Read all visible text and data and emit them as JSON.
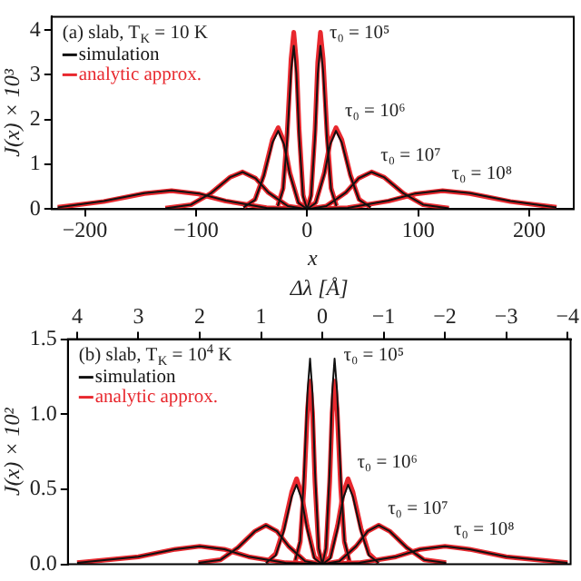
{
  "chart_data": [
    {
      "type": "line",
      "xlabel": "x",
      "ylabel": "J(x) × 10³",
      "xlim": [
        -230,
        240
      ],
      "xticks": [
        -200,
        -100,
        0,
        100,
        200
      ],
      "ylim": [
        0,
        4.3
      ],
      "yticks": [
        0,
        1,
        2,
        3,
        4
      ],
      "legend": "top left",
      "grid": false,
      "marker": "none",
      "line_style": "solid",
      "annotations": [
        "(a) slab, T$_{K}$ = 10 K",
        {
          "text": "τ₀ = 10⁵",
          "x": 12,
          "y": 3.95
        },
        {
          "text": "τ₀ = 10⁶",
          "x": 26,
          "y": 1.82
        },
        {
          "text": "τ₀ = 10⁷",
          "x": 58,
          "y": 0.83
        },
        {
          "text": "τ₀ = 10⁸",
          "x": 122,
          "y": 0.42
        }
      ],
      "series": [
        {
          "name": "simulation",
          "color": "#111111",
          "x": [
            -26.4,
            -21.6,
            -18,
            -14.4,
            -12,
            -9.6,
            -7.2,
            -3.6,
            0,
            3.6,
            7.2,
            9.6,
            12,
            14.4,
            18,
            21.6,
            26.4
          ],
          "values": [
            0.07,
            0.44,
            1.53,
            3.1,
            3.65,
            3.03,
            1.64,
            0.29,
            0,
            0.29,
            1.64,
            3.03,
            3.65,
            3.1,
            1.53,
            0.44,
            0.07
          ]
        },
        {
          "name": "analytic approx.",
          "color": "#e8282e",
          "x": [
            -26.4,
            -21.6,
            -18,
            -14.4,
            -12,
            -9.6,
            -7.2,
            -3.6,
            0,
            3.6,
            7.2,
            9.6,
            12,
            14.4,
            18,
            21.6,
            26.4
          ],
          "values": [
            0.08,
            0.47,
            1.66,
            3.36,
            3.95,
            3.28,
            1.78,
            0.32,
            0,
            0.32,
            1.78,
            3.28,
            3.95,
            3.36,
            1.66,
            0.47,
            0.08
          ]
        },
        {
          "color": "#111111",
          "x": [
            -57.2,
            -46.8,
            -39,
            -31.2,
            -26,
            -20.8,
            -15.6,
            -7.8,
            0,
            7.8,
            15.6,
            20.8,
            26,
            31.2,
            39,
            46.8,
            57.2
          ],
          "values": [
            0.04,
            0.21,
            0.74,
            1.49,
            1.75,
            1.45,
            0.79,
            0.14,
            0,
            0.14,
            0.79,
            1.45,
            1.75,
            1.49,
            0.74,
            0.21,
            0.04
          ]
        },
        {
          "color": "#e8282e",
          "x": [
            -57.2,
            -46.8,
            -39,
            -31.2,
            -26,
            -20.8,
            -15.6,
            -7.8,
            0,
            7.8,
            15.6,
            20.8,
            26,
            31.2,
            39,
            46.8,
            57.2
          ],
          "values": [
            0.04,
            0.22,
            0.76,
            1.55,
            1.82,
            1.51,
            0.82,
            0.15,
            0,
            0.15,
            0.82,
            1.51,
            1.82,
            1.55,
            0.76,
            0.22,
            0.04
          ]
        },
        {
          "color": "#111111",
          "x": [
            -127.6,
            -104.4,
            -87,
            -69.6,
            -58,
            -46.4,
            -34.8,
            -17.4,
            0,
            17.4,
            34.8,
            46.4,
            58,
            69.6,
            87,
            104.4,
            127.6
          ],
          "values": [
            0.02,
            0.1,
            0.35,
            0.71,
            0.83,
            0.69,
            0.37,
            0.07,
            0,
            0.07,
            0.37,
            0.69,
            0.83,
            0.71,
            0.35,
            0.1,
            0.02
          ]
        },
        {
          "color": "#e8282e",
          "x": [
            -127.6,
            -104.4,
            -87,
            -69.6,
            -58,
            -46.4,
            -34.8,
            -17.4,
            0,
            17.4,
            34.8,
            46.4,
            58,
            69.6,
            87,
            104.4,
            127.6
          ],
          "values": [
            0.02,
            0.1,
            0.35,
            0.71,
            0.83,
            0.69,
            0.37,
            0.07,
            0,
            0.07,
            0.37,
            0.69,
            0.83,
            0.71,
            0.35,
            0.1,
            0.02
          ]
        },
        {
          "color": "#111111",
          "x": [
            -224.5,
            -183,
            -146.4,
            -122,
            -97.6,
            -73.2,
            -36.6,
            0,
            36.6,
            73.2,
            97.6,
            122,
            146.4,
            183,
            224.5
          ],
          "values": [
            0.04,
            0.18,
            0.36,
            0.42,
            0.35,
            0.19,
            0.03,
            0,
            0.03,
            0.19,
            0.35,
            0.42,
            0.36,
            0.18,
            0.04
          ]
        },
        {
          "color": "#e8282e",
          "x": [
            -224.5,
            -183,
            -146.4,
            -122,
            -97.6,
            -73.2,
            -36.6,
            0,
            36.6,
            73.2,
            97.6,
            122,
            146.4,
            183,
            224.5
          ],
          "values": [
            0.04,
            0.17,
            0.35,
            0.41,
            0.34,
            0.18,
            0.03,
            0,
            0.03,
            0.18,
            0.34,
            0.41,
            0.35,
            0.17,
            0.04
          ]
        }
      ]
    },
    {
      "type": "line",
      "xlabel": "Δλ [Å]",
      "ylabel": "J(x) × 10²",
      "xlim": [
        4.15,
        -4.05
      ],
      "xticks": [
        4,
        3,
        2,
        1,
        0,
        -1,
        -2,
        -3,
        -4
      ],
      "ylim": [
        0,
        1.5
      ],
      "yticks": [
        {
          "value": 0,
          "label": "0.0"
        },
        {
          "value": 0.5,
          "label": "0.5"
        },
        {
          "value": 1,
          "label": "1.0"
        },
        {
          "value": 1.5,
          "label": "1.5"
        }
      ],
      "legend": "top left",
      "grid": false,
      "marker": "none",
      "line_style": "solid",
      "annotations": [
        "(b) slab, T$_{K}$ = 10$^{4}$ K",
        {
          "text": "τ₀ = 10⁵",
          "x": -0.2,
          "y": 1.37
        },
        {
          "text": "τ₀ = 10⁶",
          "x": -0.42,
          "y": 0.57
        },
        {
          "text": "τ₀ = 10⁷",
          "x": -0.92,
          "y": 0.26
        },
        {
          "text": "τ₀ = 10⁸",
          "x": -2,
          "y": 0.12
        }
      ],
      "series": [
        {
          "name": "simulation",
          "color": "#111111",
          "x": [
            -0.44,
            -0.36,
            -0.3,
            -0.24,
            -0.2,
            -0.16,
            -0.12,
            -0.06,
            0,
            0.06,
            0.12,
            0.16,
            0.2,
            0.24,
            0.3,
            0.36,
            0.44
          ],
          "values": [
            0.03,
            0.16,
            0.58,
            1.16,
            1.37,
            1.14,
            0.62,
            0.11,
            0,
            0.11,
            0.62,
            1.14,
            1.37,
            1.16,
            0.58,
            0.16,
            0.03
          ]
        },
        {
          "name": "analytic approx.",
          "color": "#e8282e",
          "x": [
            -0.44,
            -0.36,
            -0.3,
            -0.24,
            -0.2,
            -0.16,
            -0.12,
            -0.06,
            0,
            0.06,
            0.12,
            0.16,
            0.2,
            0.24,
            0.3,
            0.36,
            0.44
          ],
          "values": [
            0.02,
            0.15,
            0.51,
            1.04,
            1.22,
            1.01,
            0.55,
            0.1,
            0,
            0.1,
            0.55,
            1.01,
            1.22,
            1.04,
            0.51,
            0.15,
            0.02
          ]
        },
        {
          "color": "#111111",
          "x": [
            -0.92,
            -0.76,
            -0.63,
            -0.5,
            -0.42,
            -0.34,
            -0.25,
            -0.13,
            0,
            0.13,
            0.25,
            0.34,
            0.42,
            0.5,
            0.63,
            0.76,
            0.92
          ],
          "values": [
            0.01,
            0.06,
            0.22,
            0.45,
            0.53,
            0.44,
            0.24,
            0.04,
            0,
            0.04,
            0.24,
            0.44,
            0.53,
            0.45,
            0.22,
            0.06,
            0.01
          ]
        },
        {
          "color": "#e8282e",
          "x": [
            -0.92,
            -0.76,
            -0.63,
            -0.5,
            -0.42,
            -0.34,
            -0.25,
            -0.13,
            0,
            0.13,
            0.25,
            0.34,
            0.42,
            0.5,
            0.63,
            0.76,
            0.92
          ],
          "values": [
            0.01,
            0.07,
            0.24,
            0.48,
            0.57,
            0.47,
            0.26,
            0.05,
            0,
            0.05,
            0.26,
            0.47,
            0.57,
            0.48,
            0.24,
            0.07,
            0.01
          ]
        },
        {
          "color": "#111111",
          "x": [
            -2.02,
            -1.66,
            -1.38,
            -1.1,
            -0.92,
            -0.74,
            -0.55,
            -0.28,
            0,
            0.28,
            0.55,
            0.74,
            0.92,
            1.1,
            1.38,
            1.66,
            2.02
          ],
          "values": [
            0.01,
            0.03,
            0.11,
            0.22,
            0.26,
            0.22,
            0.12,
            0.02,
            0,
            0.02,
            0.12,
            0.22,
            0.26,
            0.22,
            0.11,
            0.03,
            0.01
          ]
        },
        {
          "color": "#e8282e",
          "x": [
            -2.02,
            -1.66,
            -1.38,
            -1.1,
            -0.92,
            -0.74,
            -0.55,
            -0.28,
            0,
            0.28,
            0.55,
            0.74,
            0.92,
            1.1,
            1.38,
            1.66,
            2.02
          ],
          "values": [
            0.01,
            0.03,
            0.11,
            0.22,
            0.26,
            0.22,
            0.12,
            0.02,
            0,
            0.02,
            0.12,
            0.22,
            0.26,
            0.22,
            0.11,
            0.03,
            0.01
          ]
        },
        {
          "color": "#111111",
          "x": [
            -4,
            -3,
            -2.4,
            -2,
            -1.6,
            -1.2,
            -0.6,
            0,
            0.6,
            1.2,
            1.6,
            2,
            2.4,
            3,
            4
          ],
          "values": [
            0.01,
            0.05,
            0.1,
            0.12,
            0.1,
            0.05,
            0.01,
            0,
            0.01,
            0.05,
            0.1,
            0.12,
            0.1,
            0.05,
            0.01
          ]
        },
        {
          "color": "#e8282e",
          "x": [
            -4,
            -3,
            -2.4,
            -2,
            -1.6,
            -1.2,
            -0.6,
            0,
            0.6,
            1.2,
            1.6,
            2,
            2.4,
            3,
            4
          ],
          "values": [
            0.01,
            0.05,
            0.1,
            0.12,
            0.1,
            0.05,
            0.01,
            0,
            0.01,
            0.05,
            0.1,
            0.12,
            0.1,
            0.05,
            0.01
          ]
        }
      ]
    }
  ]
}
